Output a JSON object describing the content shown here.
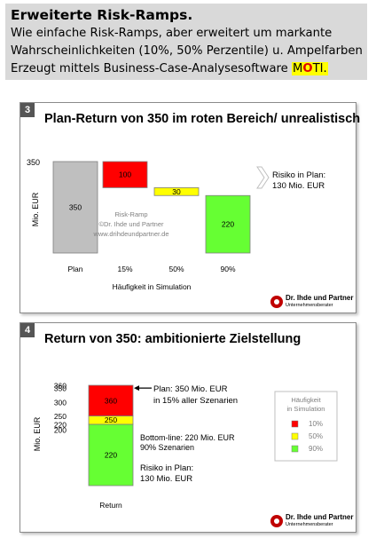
{
  "header": {
    "title": "Erweiterte Risk-Ramps.",
    "line1": "Wie einfache Risk-Ramps, aber erweitert um markante",
    "line2": "Wahrscheinlichkeiten (10%, 50% Perzentile) u. Ampelfarben",
    "line3_prefix": "Erzeugt mittels Business-Case-Analysesoftware ",
    "moti_m": "M",
    "moti_o": "O",
    "moti_rest": "TI."
  },
  "logo": {
    "name": "Dr. Ihde und Partner",
    "sub": "Unternehmensberater"
  },
  "colors": {
    "red": "#ff0000",
    "yellow": "#ffff00",
    "green": "#66ff33",
    "grey": "#bfbfbf"
  },
  "chart_data": [
    {
      "type": "bar",
      "panel_number": "3",
      "title": "Plan-Return von 350 im roten Bereich/ unrealistisch",
      "ylabel": "Mio. EUR",
      "y_tick_label": "350",
      "categories": [
        "Plan",
        "15%",
        "50%",
        "90%"
      ],
      "xlabel": "Häufigkeit in Simulation",
      "bars": [
        {
          "label": "Plan",
          "bottom": 0,
          "top": 350,
          "value": "350",
          "color": "grey"
        },
        {
          "label": "15%",
          "bottom": 250,
          "top": 350,
          "value": "100",
          "color": "red"
        },
        {
          "label": "50%",
          "bottom": 220,
          "top": 250,
          "value": "30",
          "color": "yellow"
        },
        {
          "label": "90%",
          "bottom": 0,
          "top": 220,
          "value": "220",
          "color": "green"
        }
      ],
      "ylim": [
        0,
        350
      ],
      "watermark": [
        "Risk-Ramp",
        "©Dr. Ihde und Partner",
        "www.drihdeundpartner.de"
      ],
      "callout": [
        "Risiko in Plan:",
        "130 Mio. EUR"
      ]
    },
    {
      "type": "bar",
      "panel_number": "4",
      "title": "Return von 350: ambitionierte Zielstellung",
      "ylabel": "Mio. EUR",
      "y_ticks": [
        "360",
        "350",
        "300",
        "250",
        "220",
        "200"
      ],
      "categories": [
        "Return"
      ],
      "segments": [
        {
          "bottom": 0,
          "top": 220,
          "value": "220",
          "color": "green"
        },
        {
          "bottom": 220,
          "top": 250,
          "value": "250",
          "color": "yellow"
        },
        {
          "bottom": 250,
          "top": 360,
          "value": "360",
          "color": "red"
        }
      ],
      "annotations": {
        "plan": [
          "Plan: 350 Mio. EUR",
          "in 15% aller Szenarien"
        ],
        "bottom_line": [
          "Bottom-line: 220 Mio. EUR",
          "90% Szenarien"
        ],
        "risk": [
          "Risiko in Plan:",
          "130 Mio. EUR"
        ]
      },
      "legend": {
        "title": [
          "Häufigkeit",
          "in Simulation"
        ],
        "items": [
          {
            "label": "10%",
            "color": "red"
          },
          {
            "label": "50%",
            "color": "yellow"
          },
          {
            "label": "90%",
            "color": "green"
          }
        ],
        "placement": "right"
      }
    }
  ]
}
